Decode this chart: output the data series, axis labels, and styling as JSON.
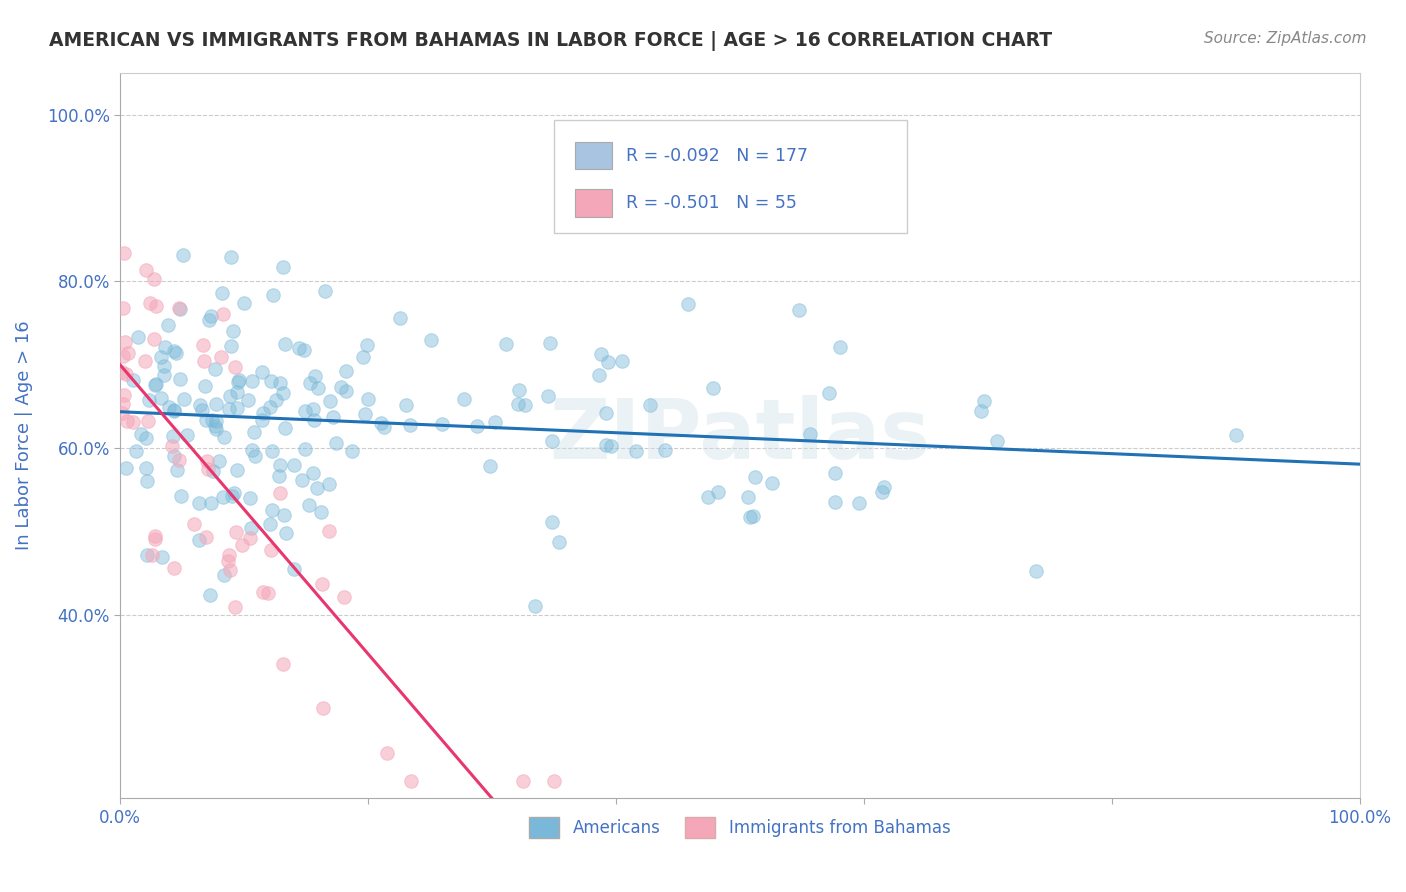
{
  "title": "AMERICAN VS IMMIGRANTS FROM BAHAMAS IN LABOR FORCE | AGE > 16 CORRELATION CHART",
  "source": "Source: ZipAtlas.com",
  "ylabel": "In Labor Force | Age > 16",
  "watermark": "ZIPatlas",
  "xlim": [
    0.0,
    1.0
  ],
  "ylim": [
    0.18,
    1.05
  ],
  "yticks": [
    0.4,
    0.6,
    0.8,
    1.0
  ],
  "ytick_labels": [
    "40.0%",
    "60.0%",
    "80.0%",
    "100.0%"
  ],
  "xtick_labels": [
    "0.0%",
    "100.0%"
  ],
  "legend_entries": [
    {
      "color": "#a8c4e0",
      "R": "-0.092",
      "N": "177",
      "label": "Americans"
    },
    {
      "color": "#f4a7b9",
      "R": "-0.501",
      "N": "55",
      "label": "Immigrants from Bahamas"
    }
  ],
  "blue_scatter_color": "#7ab8d9",
  "pink_scatter_color": "#f4a7b9",
  "blue_line_color": "#2171b5",
  "pink_line_color": "#e8366e",
  "background_color": "#ffffff",
  "grid_color": "#cccccc",
  "title_color": "#333333",
  "source_color": "#888888",
  "axis_label_color": "#4472c4",
  "tick_label_color": "#4472c4",
  "N_american": 177,
  "N_bahamas": 55,
  "american_seed": 12,
  "bahamas_seed": 99
}
